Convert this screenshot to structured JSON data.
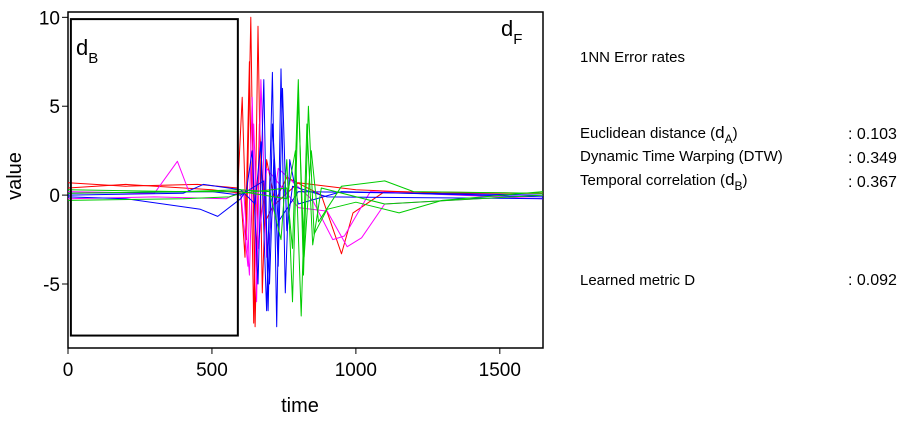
{
  "chart_data": {
    "type": "line",
    "xlabel": "time",
    "ylabel": "value",
    "xlim": [
      0,
      1650
    ],
    "ylim": [
      -8.6,
      10.3
    ],
    "xticks": [
      0,
      500,
      1000,
      1500
    ],
    "yticks": [
      10,
      5,
      0,
      -5
    ],
    "grid": false,
    "regions": [
      {
        "label_main": "d",
        "label_sub": "B",
        "x_range": [
          10,
          590
        ],
        "y_range": [
          -7.9,
          9.9
        ]
      },
      {
        "label_main": "d",
        "label_sub": "F"
      }
    ],
    "series": [
      {
        "color": "#ff0000",
        "values": [
          [
            0,
            0.4
          ],
          [
            200,
            0.6
          ],
          [
            500,
            0.3
          ],
          [
            600,
            0.1
          ],
          [
            615,
            -3.5
          ],
          [
            630,
            7.5
          ],
          [
            645,
            -7.2
          ],
          [
            660,
            9.5
          ],
          [
            675,
            -5.5
          ],
          [
            690,
            2.0
          ],
          [
            720,
            -0.5
          ],
          [
            800,
            0.7
          ],
          [
            1000,
            0.3
          ],
          [
            1300,
            0.1
          ],
          [
            1650,
            0.1
          ]
        ]
      },
      {
        "color": "#ff0000",
        "values": [
          [
            0,
            0.7
          ],
          [
            200,
            0.5
          ],
          [
            450,
            0.6
          ],
          [
            590,
            0.4
          ],
          [
            605,
            5.5
          ],
          [
            620,
            -2.5
          ],
          [
            635,
            10.0
          ],
          [
            650,
            -7.4
          ],
          [
            665,
            4.0
          ],
          [
            685,
            -1.5
          ],
          [
            760,
            1.0
          ],
          [
            880,
            0.0
          ],
          [
            950,
            -3.3
          ],
          [
            990,
            -1.0
          ],
          [
            1100,
            0.2
          ],
          [
            1650,
            0.1
          ]
        ]
      },
      {
        "color": "#ff00ff",
        "values": [
          [
            0,
            0.2
          ],
          [
            300,
            0.1
          ],
          [
            380,
            1.9
          ],
          [
            420,
            0.2
          ],
          [
            600,
            0.2
          ],
          [
            625,
            -4.0
          ],
          [
            640,
            5.5
          ],
          [
            655,
            -6.0
          ],
          [
            670,
            6.5
          ],
          [
            690,
            -3.5
          ],
          [
            730,
            1.5
          ],
          [
            850,
            -0.3
          ],
          [
            920,
            -2.5
          ],
          [
            960,
            -2.3
          ],
          [
            1050,
            0.2
          ],
          [
            1650,
            -0.2
          ]
        ]
      },
      {
        "color": "#ff00ff",
        "values": [
          [
            0,
            -0.2
          ],
          [
            300,
            -0.1
          ],
          [
            550,
            -0.2
          ],
          [
            610,
            0.3
          ],
          [
            630,
            -4.5
          ],
          [
            645,
            4.0
          ],
          [
            660,
            -3.0
          ],
          [
            690,
            1.5
          ],
          [
            800,
            -0.7
          ],
          [
            900,
            -0.9
          ],
          [
            970,
            -2.9
          ],
          [
            1020,
            -2.4
          ],
          [
            1100,
            -0.5
          ],
          [
            1650,
            0.0
          ]
        ]
      },
      {
        "color": "#0000ff",
        "values": [
          [
            0,
            -0.1
          ],
          [
            200,
            -0.2
          ],
          [
            460,
            -0.8
          ],
          [
            520,
            -1.2
          ],
          [
            600,
            -0.2
          ],
          [
            620,
            0.3
          ],
          [
            640,
            2.5
          ],
          [
            660,
            -5.0
          ],
          [
            680,
            6.5
          ],
          [
            695,
            -6.5
          ],
          [
            710,
            4.0
          ],
          [
            730,
            -1.5
          ],
          [
            800,
            0.2
          ],
          [
            1650,
            0.0
          ]
        ]
      },
      {
        "color": "#0000ff",
        "values": [
          [
            0,
            0.0
          ],
          [
            400,
            0.1
          ],
          [
            470,
            0.6
          ],
          [
            600,
            0.3
          ],
          [
            650,
            -0.5
          ],
          [
            670,
            3.0
          ],
          [
            690,
            -6.5
          ],
          [
            710,
            6.9
          ],
          [
            725,
            -7.4
          ],
          [
            740,
            7.1
          ],
          [
            755,
            -5.5
          ],
          [
            770,
            2.0
          ],
          [
            800,
            -0.5
          ],
          [
            950,
            0.2
          ],
          [
            1650,
            -0.1
          ]
        ]
      },
      {
        "color": "#0000ff",
        "values": [
          [
            0,
            0.1
          ],
          [
            500,
            0.2
          ],
          [
            600,
            0.0
          ],
          [
            680,
            0.8
          ],
          [
            700,
            -5.0
          ],
          [
            715,
            2.0
          ],
          [
            730,
            -4.0
          ],
          [
            745,
            6.0
          ],
          [
            760,
            -2.0
          ],
          [
            780,
            0.5
          ],
          [
            900,
            -0.1
          ],
          [
            1650,
            -0.2
          ]
        ]
      },
      {
        "color": "#00cc00",
        "values": [
          [
            0,
            0.3
          ],
          [
            400,
            0.2
          ],
          [
            600,
            0.3
          ],
          [
            700,
            0.2
          ],
          [
            740,
            -2.5
          ],
          [
            760,
            2.0
          ],
          [
            780,
            -6.0
          ],
          [
            800,
            5.5
          ],
          [
            820,
            -3.5
          ],
          [
            845,
            2.5
          ],
          [
            870,
            -1.5
          ],
          [
            950,
            0.5
          ],
          [
            1100,
            0.8
          ],
          [
            1200,
            0.2
          ],
          [
            1650,
            0.1
          ]
        ]
      },
      {
        "color": "#00cc00",
        "values": [
          [
            0,
            -0.3
          ],
          [
            400,
            -0.2
          ],
          [
            560,
            -0.1
          ],
          [
            600,
            0.1
          ],
          [
            760,
            0.4
          ],
          [
            780,
            -3.0
          ],
          [
            800,
            6.5
          ],
          [
            818,
            -4.5
          ],
          [
            835,
            5.0
          ],
          [
            855,
            -2.2
          ],
          [
            900,
            -0.8
          ],
          [
            1000,
            -0.4
          ],
          [
            1150,
            -1.0
          ],
          [
            1300,
            -0.3
          ],
          [
            1650,
            0.2
          ]
        ]
      },
      {
        "color": "#00cc00",
        "values": [
          [
            0,
            0.1
          ],
          [
            400,
            0.2
          ],
          [
            600,
            0.2
          ],
          [
            760,
            -0.2
          ],
          [
            790,
            2.5
          ],
          [
            810,
            -6.8
          ],
          [
            830,
            4.0
          ],
          [
            850,
            -2.8
          ],
          [
            880,
            0.4
          ],
          [
            1100,
            -0.5
          ],
          [
            1650,
            0.0
          ]
        ]
      }
    ]
  },
  "panel": {
    "heading": "1NN  Error rates",
    "metrics": [
      {
        "label": "Euclidean distance (",
        "label_main": "d",
        "label_sub": "A",
        "label_close": ")",
        "value": ": 0.103"
      },
      {
        "label": "Dynamic Time Warping (DTW)",
        "value": ": 0.349"
      },
      {
        "label": "Temporal correlation (",
        "label_main": "d",
        "label_sub": "B",
        "label_close": ")",
        "value": ": 0.367"
      },
      {
        "label": "Learned metric D",
        "value": ": 0.092"
      }
    ]
  }
}
